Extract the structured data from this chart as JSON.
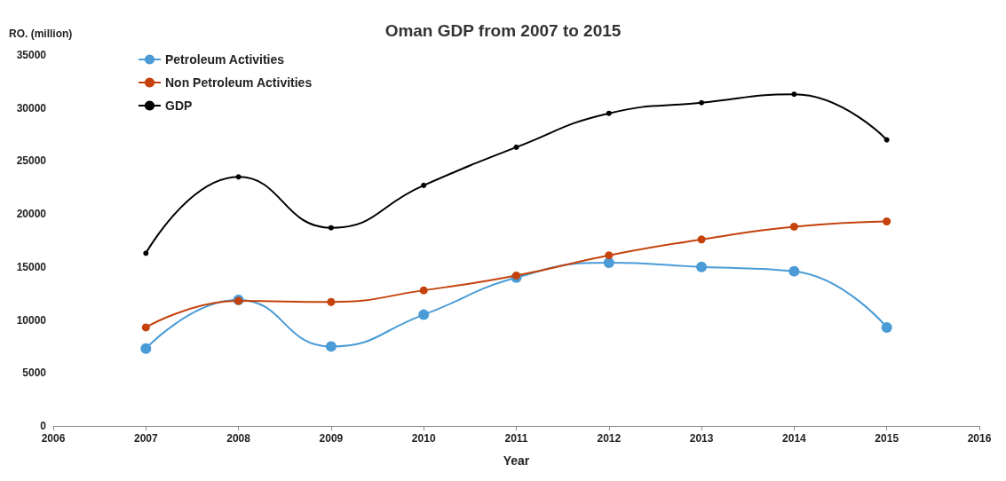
{
  "chart_data": {
    "type": "line",
    "title": "Oman GDP from 2007 to 2015",
    "xlabel": "Year",
    "ylabel": "RO. (million)",
    "x": [
      2007,
      2008,
      2009,
      2010,
      2011,
      2012,
      2013,
      2014,
      2015
    ],
    "series": [
      {
        "name": "Petroleum Activities",
        "color": "#4a9bd6",
        "values": [
          7300,
          11900,
          7500,
          10500,
          14000,
          15400,
          15000,
          14600,
          9300
        ]
      },
      {
        "name": "Non Petroleum Activities",
        "color": "#c5420c",
        "values": [
          9300,
          11800,
          11700,
          12800,
          14200,
          16100,
          17600,
          18800,
          19300
        ]
      },
      {
        "name": "GDP",
        "color": "#000000",
        "values": [
          16300,
          23500,
          18700,
          22700,
          26300,
          29500,
          30500,
          31300,
          27000
        ]
      }
    ],
    "xlim": [
      2006,
      2016
    ],
    "xticks": [
      2006,
      2007,
      2008,
      2009,
      2010,
      2011,
      2012,
      2013,
      2014,
      2015,
      2016
    ],
    "ylim": [
      0,
      35000
    ],
    "yticks": [
      0,
      5000,
      10000,
      15000,
      20000,
      25000,
      30000,
      35000
    ],
    "grid": false,
    "legend": "top left",
    "marker": "circle",
    "line_style": "solid"
  }
}
